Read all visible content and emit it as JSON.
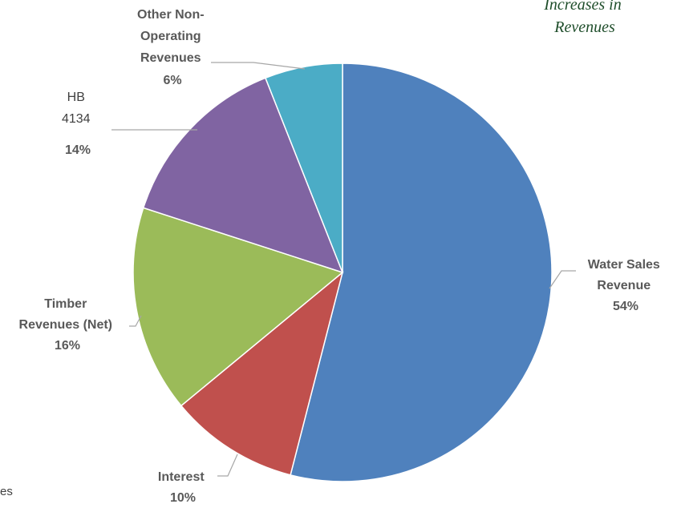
{
  "corner_note": {
    "line1": "Increases in",
    "line2": "Revenues"
  },
  "edge_fragment": "es",
  "chart_data": {
    "type": "pie",
    "title": "",
    "slices": [
      {
        "name": "Water Sales Revenue",
        "label_lines": [
          "Water Sales",
          "Revenue"
        ],
        "percent_label": "54%",
        "value": 54,
        "color": "#4f81bd"
      },
      {
        "name": "Interest",
        "label_lines": [
          "Interest"
        ],
        "percent_label": "10%",
        "value": 10,
        "color": "#c0504d"
      },
      {
        "name": "Timber Revenues (Net)",
        "label_lines": [
          "Timber",
          "Revenues (Net)"
        ],
        "percent_label": "16%",
        "value": 16,
        "color": "#9bbb59"
      },
      {
        "name": "HB 4134",
        "label_lines": [
          "HB",
          "4134"
        ],
        "percent_label": "14%",
        "value": 14,
        "color": "#8064a2"
      },
      {
        "name": "Other Non-Operating Revenues",
        "label_lines": [
          "Other Non-",
          "Operating",
          "Revenues"
        ],
        "percent_label": "6%",
        "value": 6,
        "color": "#4bacc6"
      }
    ],
    "start": "12 o'clock",
    "direction": "clockwise",
    "legend": "none",
    "data_labels": "outside with leader lines"
  }
}
